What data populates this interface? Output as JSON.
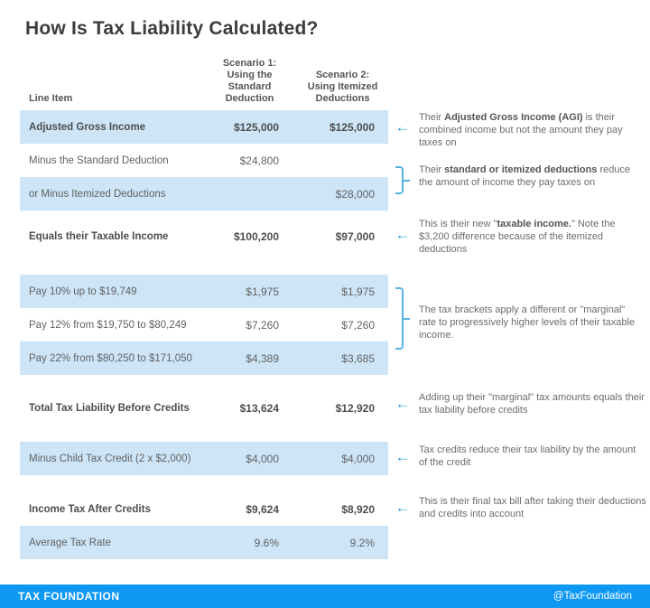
{
  "title": "How Is Tax Liability Calculated?",
  "colors": {
    "row_shade": "#cde5f6",
    "accent_arrow": "#2f9fd8",
    "bracket": "#56b3e1",
    "footer_bg": "#0d98f4"
  },
  "icons": {
    "left_arrow": "←"
  },
  "table": {
    "headers": {
      "line_item": "Line Item",
      "scenario1": "Scenario 1:\nUsing the\nStandard\nDeduction",
      "scenario2": "Scenario 2:\nUsing Itemized\nDeductions"
    },
    "rows": [
      {
        "label": "Adjusted Gross Income",
        "scenario1": "$125,000",
        "scenario2": "$125,000"
      },
      {
        "label": "Minus the Standard Deduction",
        "scenario1": "$24,800",
        "scenario2": ""
      },
      {
        "label": "or Minus Itemized Deductions",
        "scenario1": "",
        "scenario2": "$28,000"
      },
      {
        "label": "Equals their Taxable Income",
        "scenario1": "$100,200",
        "scenario2": "$97,000"
      },
      {
        "label": "Pay 10% up to $19,749",
        "scenario1": "$1,975",
        "scenario2": "$1,975"
      },
      {
        "label": "Pay 12% from $19,750 to $80,249",
        "scenario1": "$7,260",
        "scenario2": "$7,260"
      },
      {
        "label": "Pay 22% from $80,250 to $171,050",
        "scenario1": "$4,389",
        "scenario2": "$3,685"
      },
      {
        "label": "Total Tax Liability Before Credits",
        "scenario1": "$13,624",
        "scenario2": "$12,920"
      },
      {
        "label": "Minus Child Tax Credit (2 x $2,000)",
        "scenario1": "$4,000",
        "scenario2": "$4,000"
      },
      {
        "label": "Income Tax After Credits",
        "scenario1": "$9,624",
        "scenario2": "$8,920"
      },
      {
        "label": "Average Tax Rate",
        "scenario1": "9.6%",
        "scenario2": "9.2%"
      }
    ]
  },
  "annotations": [
    {
      "pre": "Their ",
      "bold": "Adjusted Gross Income (AGI)",
      "post": " is their combined income but not the amount they pay taxes on"
    },
    {
      "pre": "Their ",
      "bold": "standard or itemized deductions",
      "post": " reduce the amount of income they pay taxes on"
    },
    {
      "pre": "This is their new \"",
      "bold": "taxable income.",
      "post": "\" Note the $3,200 difference because of the itemized deductions"
    },
    {
      "pre": "The tax brackets apply a different or \"marginal\" rate to progressively higher levels of their taxable income.",
      "bold": "",
      "post": ""
    },
    {
      "pre": "Adding up their \"marginal\" tax amounts equals their tax liability before credits",
      "bold": "",
      "post": ""
    },
    {
      "pre": "Tax credits reduce their tax liability by the amount of the credit",
      "bold": "",
      "post": ""
    },
    {
      "pre": "This is their final tax bill after taking their deductions and credits into account",
      "bold": "",
      "post": ""
    }
  ],
  "footer": {
    "brand": "TAX FOUNDATION",
    "handle": "@TaxFoundation"
  },
  "chart_data": {
    "type": "table",
    "title": "How Is Tax Liability Calculated?",
    "columns": [
      "Line Item",
      "Scenario 1: Using the Standard Deduction",
      "Scenario 2: Using Itemized Deductions"
    ],
    "rows": [
      [
        "Adjusted Gross Income",
        "$125,000",
        "$125,000"
      ],
      [
        "Minus the Standard Deduction",
        "$24,800",
        ""
      ],
      [
        "or Minus Itemized Deductions",
        "",
        "$28,000"
      ],
      [
        "Equals their Taxable Income",
        "$100,200",
        "$97,000"
      ],
      [
        "Pay 10% up to $19,749",
        "$1,975",
        "$1,975"
      ],
      [
        "Pay 12% from $19,750 to $80,249",
        "$7,260",
        "$7,260"
      ],
      [
        "Pay 22% from $80,250 to $171,050",
        "$4,389",
        "$3,685"
      ],
      [
        "Total Tax Liability Before Credits",
        "$13,624",
        "$12,920"
      ],
      [
        "Minus Child Tax Credit (2 x $2,000)",
        "$4,000",
        "$4,000"
      ],
      [
        "Income Tax After Credits",
        "$9,624",
        "$8,920"
      ],
      [
        "Average Tax Rate",
        "9.6%",
        "9.2%"
      ]
    ],
    "shaded_row_indices": [
      0,
      2,
      4,
      6,
      8,
      10
    ],
    "bold_row_indices": [
      0,
      3,
      7,
      9
    ],
    "annotations": [
      "Their Adjusted Gross Income (AGI) is their combined income but not the amount they pay taxes on",
      "Their standard or itemized deductions reduce the amount of income they pay taxes on",
      "This is their new \"taxable income.\" Note the $3,200 difference because of the itemized deductions",
      "The tax brackets apply a different or \"marginal\" rate to progressively higher levels of their taxable income.",
      "Adding up their \"marginal\" tax amounts equals their tax liability before credits",
      "Tax credits reduce their tax liability by the amount of the credit",
      "This is their final tax bill after taking their deductions and credits into account"
    ],
    "source": "Tax Foundation / @TaxFoundation"
  }
}
